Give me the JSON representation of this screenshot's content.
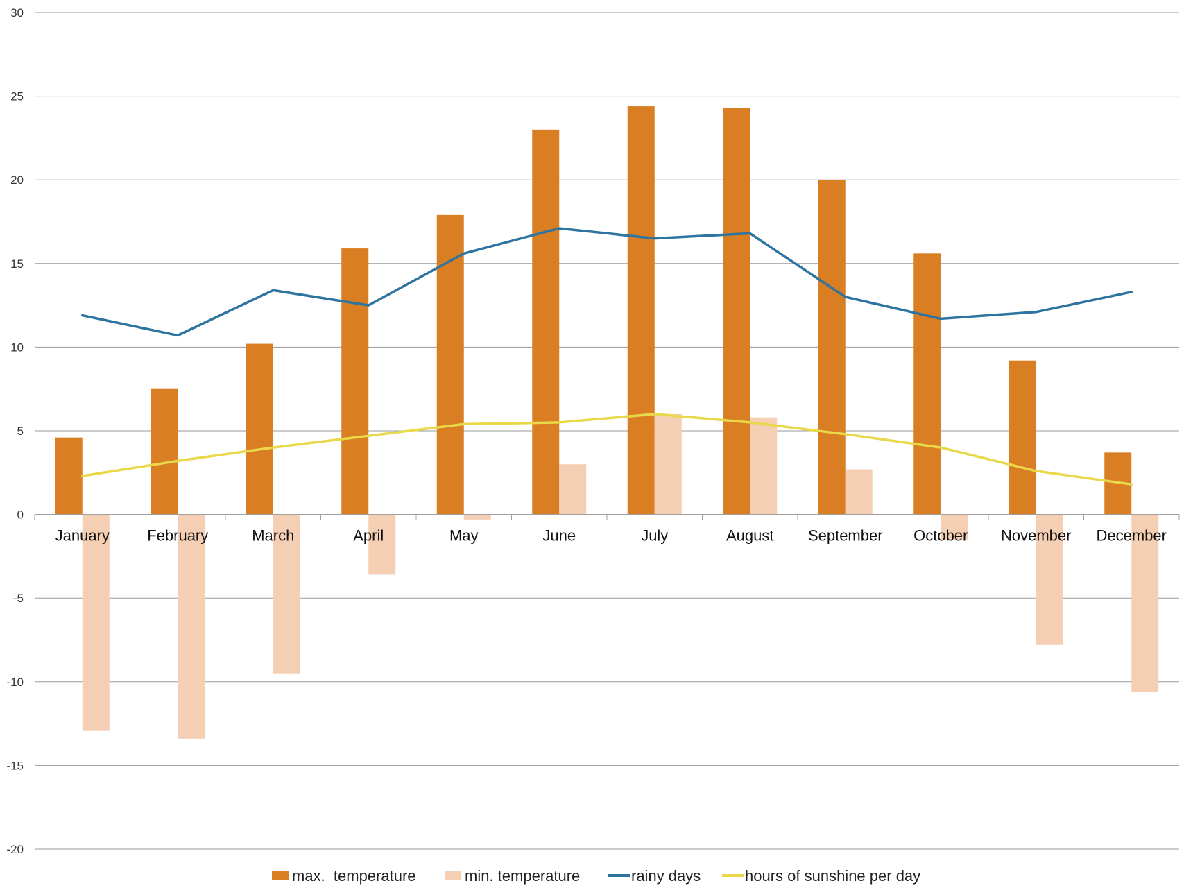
{
  "chart_data": {
    "type": "bar",
    "categories": [
      "January",
      "February",
      "March",
      "April",
      "May",
      "June",
      "July",
      "August",
      "September",
      "October",
      "November",
      "December"
    ],
    "series": [
      {
        "name": "max.  temperature",
        "kind": "bar",
        "color": "#D97E22",
        "values": [
          4.6,
          7.5,
          10.2,
          15.9,
          17.9,
          23.0,
          24.4,
          24.3,
          20.0,
          15.6,
          9.2,
          3.7
        ]
      },
      {
        "name": "min. temperature",
        "kind": "bar",
        "color": "#F4CFB3",
        "values": [
          -12.9,
          -13.4,
          -9.5,
          -3.6,
          -0.3,
          3.0,
          6.0,
          5.8,
          2.7,
          -1.5,
          -7.8,
          -10.6
        ]
      },
      {
        "name": "rainy days",
        "kind": "line",
        "color": "#2E74A0",
        "values": [
          11.9,
          10.7,
          13.4,
          12.5,
          15.6,
          17.1,
          16.5,
          16.8,
          13.0,
          11.7,
          12.1,
          13.3
        ]
      },
      {
        "name": "hours of sunshine per day",
        "kind": "line",
        "color": "#E8D84A",
        "values": [
          2.3,
          3.2,
          4.0,
          4.7,
          5.4,
          5.5,
          6.0,
          5.5,
          4.8,
          4.0,
          2.6,
          1.8
        ]
      }
    ],
    "ylim": [
      -20,
      30
    ],
    "yticks": [
      30,
      25,
      20,
      15,
      10,
      5,
      0,
      -5,
      -10,
      -15,
      -20
    ],
    "grid": true,
    "legend_position": "bottom"
  }
}
